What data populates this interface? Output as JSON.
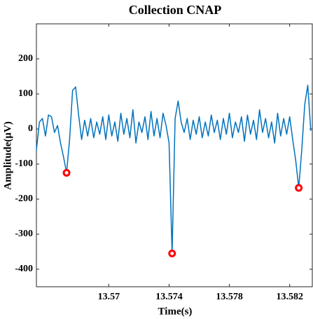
{
  "chart_data": {
    "type": "line",
    "title": "Collection CNAP",
    "xlabel": "Time(s)",
    "ylabel": "Amplitude(μV)",
    "xlim": [
      13.5652,
      13.5835
    ],
    "xticks": [
      13.57,
      13.574,
      13.578,
      13.582
    ],
    "ylim": [
      -450,
      300
    ],
    "yticks": [
      -400,
      -300,
      -200,
      -100,
      0,
      100,
      200
    ],
    "series": [
      {
        "color": "#0072bd",
        "marker": "none",
        "x": [
          13.5652,
          13.5654,
          13.5656,
          13.5658,
          13.566,
          13.5662,
          13.5664,
          13.5666,
          13.5668,
          13.567,
          13.5672,
          13.5674,
          13.5676,
          13.5678,
          13.568,
          13.5682,
          13.5684,
          13.5686,
          13.5688,
          13.569,
          13.5692,
          13.5694,
          13.5696,
          13.5698,
          13.57,
          13.5702,
          13.5704,
          13.5706,
          13.5708,
          13.571,
          13.5712,
          13.5714,
          13.5716,
          13.5718,
          13.572,
          13.5722,
          13.5724,
          13.5726,
          13.5728,
          13.573,
          13.5732,
          13.5734,
          13.5736,
          13.5738,
          13.574,
          13.5742,
          13.5744,
          13.5746,
          13.5748,
          13.575,
          13.5752,
          13.5754,
          13.5756,
          13.5758,
          13.576,
          13.5762,
          13.5764,
          13.5766,
          13.5768,
          13.577,
          13.5772,
          13.5774,
          13.5776,
          13.5778,
          13.578,
          13.5782,
          13.5784,
          13.5786,
          13.5788,
          13.579,
          13.5792,
          13.5794,
          13.5796,
          13.5798,
          13.58,
          13.5802,
          13.5804,
          13.5806,
          13.5808,
          13.581,
          13.5812,
          13.5814,
          13.5816,
          13.5818,
          13.582,
          13.5822,
          13.5824,
          13.5826,
          13.5828,
          13.583,
          13.5832,
          13.5834
        ],
        "values": [
          -60,
          20,
          30,
          -20,
          40,
          35,
          -10,
          10,
          -40,
          -80,
          -125,
          -30,
          110,
          120,
          40,
          -30,
          25,
          -20,
          30,
          -25,
          20,
          -15,
          35,
          -30,
          40,
          -20,
          20,
          -35,
          45,
          -15,
          30,
          -25,
          55,
          -40,
          20,
          -10,
          35,
          -30,
          50,
          -20,
          30,
          -25,
          45,
          10,
          -40,
          -355,
          30,
          80,
          20,
          -10,
          30,
          -30,
          25,
          -15,
          35,
          -25,
          20,
          -20,
          40,
          -10,
          25,
          -30,
          30,
          -15,
          45,
          -25,
          20,
          -10,
          35,
          -35,
          40,
          -15,
          25,
          -30,
          55,
          -10,
          30,
          -25,
          20,
          -40,
          45,
          -20,
          30,
          -15,
          35,
          -30,
          -90,
          -168,
          -60,
          70,
          125,
          -5
        ]
      },
      {
        "color": "#ff0000",
        "marker": "circle",
        "x": [
          13.5672,
          13.5742,
          13.5826
        ],
        "values": [
          -125,
          -355,
          -168
        ]
      }
    ]
  }
}
